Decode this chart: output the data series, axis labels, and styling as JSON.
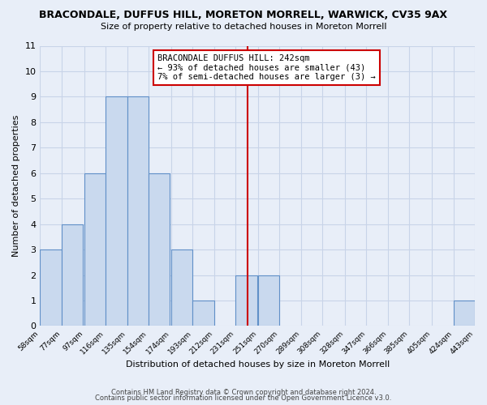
{
  "title": "BRACONDALE, DUFFUS HILL, MORETON MORRELL, WARWICK, CV35 9AX",
  "subtitle": "Size of property relative to detached houses in Moreton Morrell",
  "xlabel": "Distribution of detached houses by size in Moreton Morrell",
  "ylabel": "Number of detached properties",
  "bar_color": "#c9d9ee",
  "bar_edge_color": "#6090c8",
  "bins_left": [
    58,
    77,
    97,
    116,
    135,
    154,
    174,
    193,
    212,
    231,
    251,
    270,
    289,
    308,
    328,
    347,
    366,
    385,
    405,
    424
  ],
  "bin_width": 19,
  "counts": [
    3,
    4,
    6,
    9,
    9,
    6,
    3,
    1,
    0,
    2,
    2,
    0,
    0,
    0,
    0,
    0,
    0,
    0,
    0,
    1
  ],
  "tick_labels": [
    "58sqm",
    "77sqm",
    "97sqm",
    "116sqm",
    "135sqm",
    "154sqm",
    "174sqm",
    "193sqm",
    "212sqm",
    "231sqm",
    "251sqm",
    "270sqm",
    "289sqm",
    "308sqm",
    "328sqm",
    "347sqm",
    "366sqm",
    "385sqm",
    "405sqm",
    "424sqm",
    "443sqm"
  ],
  "ylim": [
    0,
    11
  ],
  "yticks": [
    0,
    1,
    2,
    3,
    4,
    5,
    6,
    7,
    8,
    9,
    10,
    11
  ],
  "property_line_x": 242,
  "annotation_title": "BRACONDALE DUFFUS HILL: 242sqm",
  "annotation_line1": "← 93% of detached houses are smaller (43)",
  "annotation_line2": "7% of semi-detached houses are larger (3) →",
  "footer_line1": "Contains HM Land Registry data © Crown copyright and database right 2024.",
  "footer_line2": "Contains public sector information licensed under the Open Government Licence v3.0.",
  "background_color": "#e8eef8",
  "grid_color": "#c8d4e8",
  "annotation_box_color": "#ffffff",
  "annotation_box_edge": "#cc0000",
  "vline_color": "#cc0000"
}
